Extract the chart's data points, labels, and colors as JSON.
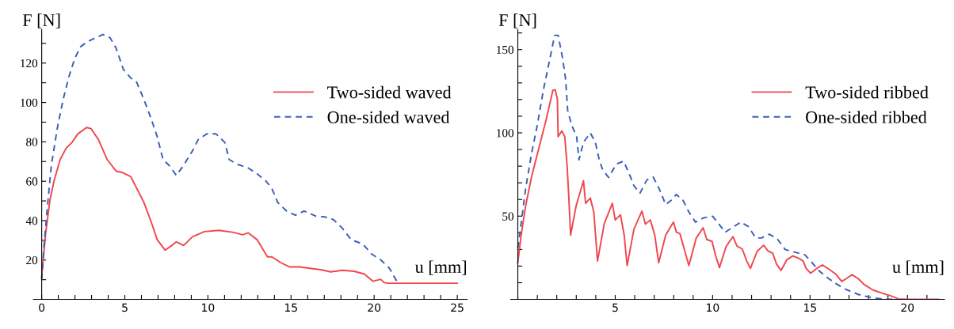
{
  "chart_data": [
    {
      "type": "line",
      "xlabel": "u [mm]",
      "ylabel": "F [N]",
      "xlim": [
        -0.5,
        25.6
      ],
      "ylim": [
        0,
        137
      ],
      "xticks": [
        0,
        {
          "value": 1,
          "label": null
        },
        {
          "value": 2,
          "label": null
        },
        {
          "value": 3,
          "label": null
        },
        {
          "value": 4,
          "label": null
        },
        5,
        {
          "value": 6,
          "label": null
        },
        {
          "value": 7,
          "label": null
        },
        {
          "value": 8,
          "label": null
        },
        {
          "value": 9,
          "label": null
        },
        10,
        {
          "value": 11,
          "label": null
        },
        {
          "value": 12,
          "label": null
        },
        {
          "value": 13,
          "label": null
        },
        {
          "value": 14,
          "label": null
        },
        15,
        {
          "value": 16,
          "label": null
        },
        {
          "value": 17,
          "label": null
        },
        {
          "value": 18,
          "label": null
        },
        {
          "value": 19,
          "label": null
        },
        20,
        {
          "value": 21,
          "label": null
        },
        {
          "value": 22,
          "label": null
        },
        {
          "value": 23,
          "label": null
        },
        {
          "value": 24,
          "label": null
        },
        25
      ],
      "yticks": [
        {
          "value": 10,
          "label": null
        },
        20,
        {
          "value": 30,
          "label": null
        },
        40,
        {
          "value": 50,
          "label": null
        },
        60,
        {
          "value": 70,
          "label": null
        },
        80,
        {
          "value": 90,
          "label": null
        },
        100,
        {
          "value": 110,
          "label": null
        },
        120,
        {
          "value": 130,
          "label": null
        }
      ],
      "legend": "top right",
      "grid": false,
      "series": [
        {
          "name": "Two-sided waved",
          "color": "#f0474f",
          "line_style": "solid",
          "x": [
            0,
            0.23,
            0.5,
            0.76,
            1.11,
            1.47,
            1.82,
            2.17,
            2.7,
            2.97,
            3.41,
            3.94,
            4.47,
            4.83,
            5.36,
            5.71,
            6.15,
            6.6,
            6.95,
            7.43,
            7.83,
            8.1,
            8.54,
            9.07,
            9.78,
            10.66,
            11.55,
            12.08,
            12.43,
            12.96,
            13.58,
            13.84,
            14.37,
            14.9,
            15.52,
            16.14,
            16.85,
            17.38,
            18.09,
            18.79,
            19.41,
            19.94,
            20.39,
            20.6,
            20.83,
            25
          ],
          "values": [
            11.4,
            33,
            50.7,
            60.8,
            71,
            76.8,
            79.7,
            84,
            87.3,
            86.7,
            81.2,
            71,
            65.2,
            64.5,
            62.3,
            56.5,
            49.2,
            39,
            30.3,
            25,
            27.4,
            29.2,
            27.4,
            31.8,
            34.4,
            35.1,
            34,
            32.8,
            33.8,
            30.3,
            21.6,
            21.6,
            18.7,
            16.5,
            16.5,
            15.8,
            15,
            14,
            14.8,
            14.3,
            12.9,
            9.2,
            10.2,
            8.5,
            8.2,
            8.2
          ]
        },
        {
          "name": "One-sided waved",
          "color": "#3a5fb8",
          "line_style": "dashed",
          "x": [
            0,
            0.14,
            0.32,
            0.58,
            0.94,
            1.29,
            1.64,
            2,
            2.35,
            2.7,
            3.23,
            3.68,
            4.12,
            4.47,
            4.91,
            5.36,
            5.71,
            6.15,
            6.6,
            6.95,
            7.3,
            7.66,
            8.1,
            8.54,
            9.07,
            9.42,
            9.95,
            10.48,
            11.02,
            11.28,
            11.72,
            12.43,
            12.96,
            13.49,
            13.84,
            14.2,
            14.73,
            15.26,
            15.79,
            16.5,
            17.03,
            17.56,
            18.09,
            18.62,
            19.32,
            19.85,
            20.39,
            20.92,
            21.36
          ],
          "values": [
            10,
            27.4,
            44.9,
            68.1,
            87,
            101.5,
            113.2,
            122.6,
            128.4,
            130.6,
            132.8,
            134.5,
            132.8,
            127.7,
            116.8,
            112.4,
            110.3,
            101.5,
            91.4,
            82.6,
            71,
            68.1,
            63,
            68.1,
            75.4,
            81.2,
            84.1,
            84.1,
            79.7,
            71,
            68.8,
            66.7,
            63.8,
            60.1,
            56.5,
            49.2,
            44.9,
            42.7,
            44.9,
            42.2,
            41.9,
            40.5,
            36.1,
            30.3,
            28.1,
            23,
            20.1,
            15.8,
            9.2
          ]
        }
      ]
    },
    {
      "type": "line",
      "xlabel": "u [mm]",
      "ylabel": "F [N]",
      "xlim": [
        -0.37,
        21.9
      ],
      "ylim": [
        0,
        162
      ],
      "xticks": [
        {
          "value": 0,
          "label": null
        },
        {
          "value": 1,
          "label": null
        },
        {
          "value": 2,
          "label": null
        },
        {
          "value": 3,
          "label": null
        },
        {
          "value": 4,
          "label": null
        },
        5,
        {
          "value": 6,
          "label": null
        },
        {
          "value": 7,
          "label": null
        },
        {
          "value": 8,
          "label": null
        },
        {
          "value": 9,
          "label": null
        },
        10,
        {
          "value": 11,
          "label": null
        },
        {
          "value": 12,
          "label": null
        },
        {
          "value": 13,
          "label": null
        },
        {
          "value": 14,
          "label": null
        },
        15,
        {
          "value": 16,
          "label": null
        },
        {
          "value": 17,
          "label": null
        },
        {
          "value": 18,
          "label": null
        },
        {
          "value": 19,
          "label": null
        },
        20,
        {
          "value": 21,
          "label": null
        }
      ],
      "yticks": [
        {
          "value": 10,
          "label": null
        },
        {
          "value": 20,
          "label": null
        },
        {
          "value": 30,
          "label": null
        },
        {
          "value": 40,
          "label": null
        },
        50,
        {
          "value": 60,
          "label": null
        },
        {
          "value": 70,
          "label": null
        },
        {
          "value": 80,
          "label": null
        },
        {
          "value": 90,
          "label": null
        },
        100,
        {
          "value": 110,
          "label": null
        },
        {
          "value": 120,
          "label": null
        },
        {
          "value": 130,
          "label": null
        },
        {
          "value": 140,
          "label": null
        },
        150,
        {
          "value": 160,
          "label": null
        }
      ],
      "legend": "top right",
      "grid": false,
      "series": [
        {
          "name": "Two-sided ribbed",
          "color": "#f0474f",
          "line_style": "solid",
          "x": [
            0,
            0.17,
            0.4,
            0.7,
            1.08,
            1.46,
            1.8,
            1.92,
            2.03,
            2.07,
            2.26,
            2.41,
            2.53,
            2.61,
            2.71,
            2.99,
            3.37,
            3.48,
            3.72,
            3.9,
            4.09,
            4.44,
            4.85,
            5,
            5.27,
            5.46,
            5.61,
            5.96,
            6.37,
            6.55,
            6.8,
            7.03,
            7.23,
            7.59,
            7.99,
            8.14,
            8.32,
            8.55,
            8.78,
            9.16,
            9.51,
            9.7,
            9.97,
            10.15,
            10.35,
            10.69,
            11.04,
            11.25,
            11.52,
            11.75,
            11.94,
            12.29,
            12.62,
            12.85,
            13.08,
            13.28,
            13.51,
            13.81,
            14.12,
            14.42,
            14.65,
            14.8,
            15.03,
            15.34,
            15.64,
            16.02,
            16.33,
            16.63,
            16.86,
            17.16,
            17.47,
            17.77,
            18.23,
            18.69,
            19.15,
            19.53,
            19.98,
            21.6
          ],
          "values": [
            22,
            38.6,
            56,
            73.4,
            90.8,
            108.2,
            125.6,
            125.9,
            120.3,
            97.7,
            101.2,
            97.7,
            80.3,
            63,
            38.6,
            56,
            71.3,
            57.7,
            60.9,
            52.5,
            23,
            45.6,
            57.7,
            47.7,
            50.8,
            38.6,
            20.3,
            42.1,
            53,
            45.2,
            47.7,
            38.6,
            22,
            38.6,
            46.4,
            40.3,
            39.5,
            29.9,
            20.3,
            36.9,
            43,
            36,
            34.8,
            26.4,
            19.1,
            31.7,
            37.7,
            32,
            30.3,
            23,
            18.6,
            29,
            32.5,
            29,
            27.8,
            21.2,
            17.4,
            23.8,
            26.1,
            24.7,
            23,
            18.6,
            15.7,
            18.6,
            20.7,
            17.7,
            15.1,
            10.8,
            12.5,
            14.8,
            12.5,
            9,
            5.6,
            3.8,
            2.1,
            0.3,
            0,
            0
          ]
        },
        {
          "name": "One-sided ribbed",
          "color": "#3a5fb8",
          "line_style": "dashed",
          "x": [
            0,
            0.17,
            0.4,
            0.7,
            1,
            1.31,
            1.62,
            1.89,
            2.07,
            2.3,
            2.45,
            2.56,
            2.76,
            3.02,
            3.14,
            3.37,
            3.72,
            3.98,
            4.18,
            4.36,
            4.66,
            5.05,
            5.43,
            5.73,
            5.96,
            6.27,
            6.62,
            6.95,
            7.26,
            7.59,
            7.87,
            8.14,
            8.48,
            8.78,
            9.12,
            9.54,
            10,
            10.3,
            10.64,
            10.99,
            11.45,
            11.83,
            12.21,
            12.52,
            12.9,
            13.28,
            13.73,
            14.27,
            14.73,
            15.03,
            15.49,
            15.95,
            16.4,
            16.86,
            17.47,
            18.08,
            18.69,
            19.3
          ],
          "values": [
            30.8,
            45.6,
            66.4,
            87.3,
            104.7,
            125.6,
            143,
            158.6,
            158.6,
            144.7,
            132.5,
            113.4,
            104.7,
            97.7,
            83.8,
            94.3,
            100,
            94.3,
            83.8,
            77.7,
            73.2,
            81.2,
            83,
            75.1,
            68.2,
            63.8,
            71.7,
            73.4,
            66.4,
            56.9,
            59.5,
            63,
            59.5,
            52.5,
            46.4,
            49,
            49.9,
            45.6,
            40.3,
            43,
            46.4,
            43.8,
            36.9,
            36.9,
            39.1,
            36.9,
            29.9,
            28.2,
            26.8,
            23,
            16.9,
            12.5,
            9,
            5.9,
            3,
            1.2,
            0.3,
            0
          ]
        }
      ]
    }
  ]
}
